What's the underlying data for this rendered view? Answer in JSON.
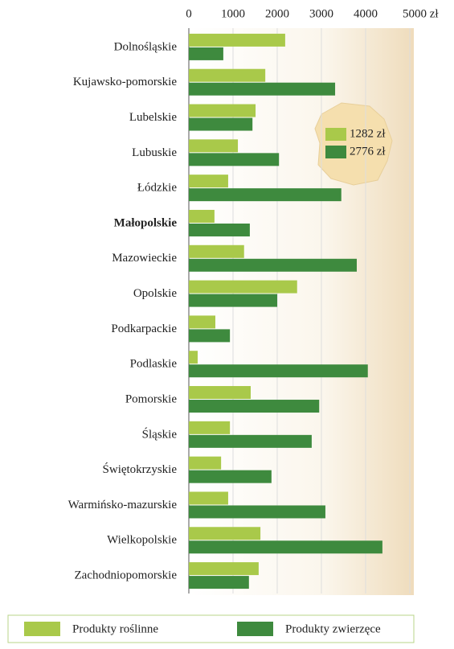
{
  "chart_data": {
    "type": "bar",
    "orientation": "horizontal",
    "categories": [
      "Dolnośląskie",
      "Kujawsko-pomorskie",
      "Lubelskie",
      "Lubuskie",
      "Łódzkie",
      "Małopolskie",
      "Mazowieckie",
      "Opolskie",
      "Podkarpackie",
      "Podlaskie",
      "Pomorskie",
      "Śląskie",
      "Świętokrzyskie",
      "Warmińsko-mazurskie",
      "Wielkopolskie",
      "Zachodniopomorskie"
    ],
    "highlight": "Małopolskie",
    "series": [
      {
        "name": "Produkty roślinne",
        "color": "#a9c94a",
        "values": [
          2180,
          1730,
          1510,
          1110,
          890,
          580,
          1250,
          2450,
          600,
          200,
          1400,
          930,
          730,
          890,
          1620,
          1580
        ]
      },
      {
        "name": "Produkty zwierzęce",
        "color": "#3e8a3e",
        "values": [
          780,
          3310,
          1440,
          2040,
          3450,
          1380,
          3800,
          2000,
          930,
          4050,
          2950,
          2780,
          1870,
          3090,
          4380,
          1360
        ]
      }
    ],
    "averages": {
      "values": [
        1282,
        2776
      ],
      "value_labels": [
        "1282 zł",
        "2776 zł"
      ]
    },
    "xlim": [
      0,
      5000
    ],
    "xticks": [
      0,
      1000,
      2000,
      3000,
      4000,
      {
        "value": 5000,
        "label": "5000 zł"
      }
    ],
    "grid": true,
    "legend": "bottom"
  }
}
